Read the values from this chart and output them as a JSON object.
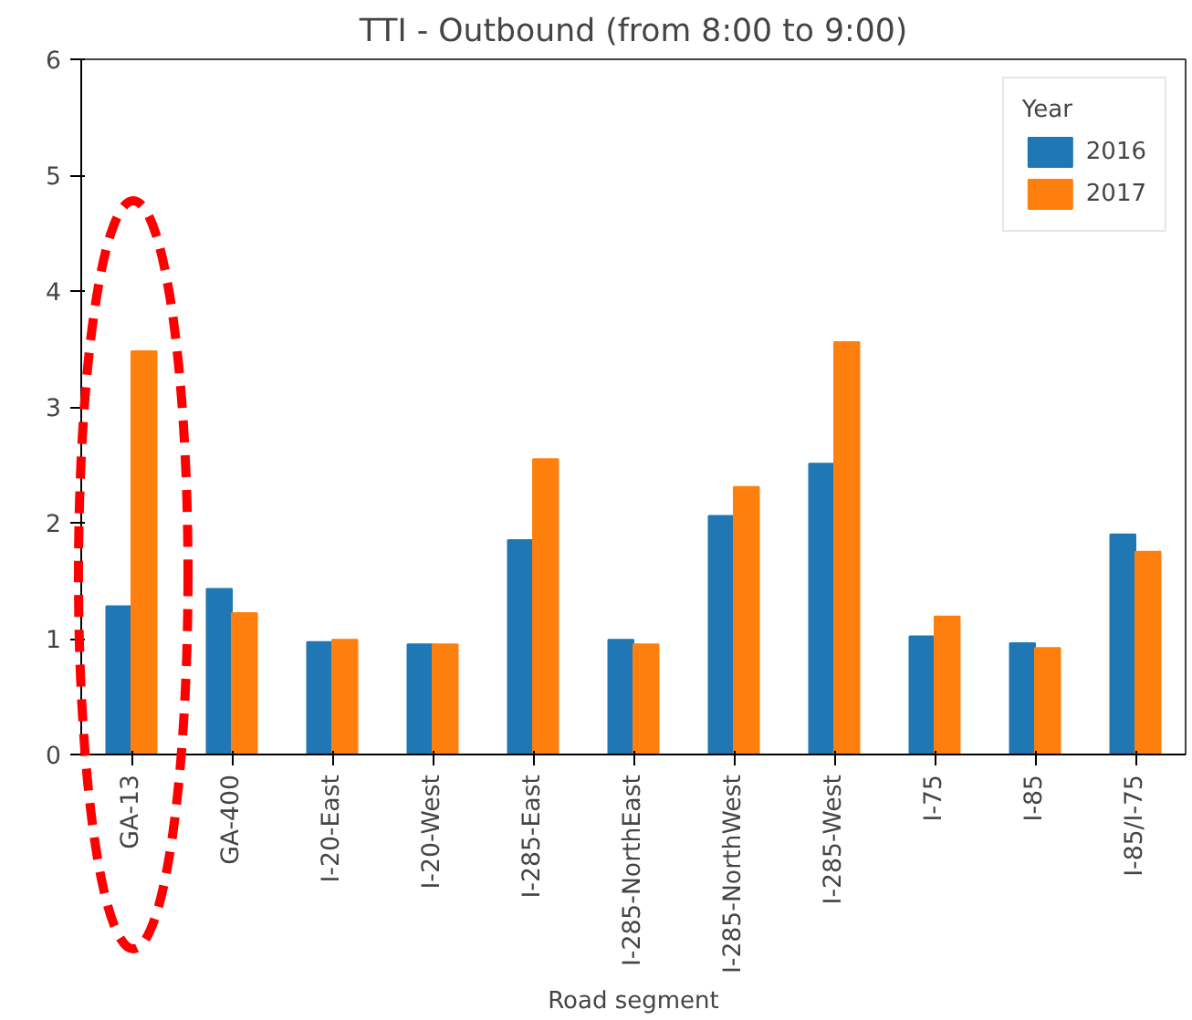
{
  "chart_data": {
    "type": "bar",
    "title": "TTI - Outbound (from 8:00 to 9:00)",
    "xlabel": "Road segment",
    "legend_title": "Year",
    "legend": "top right",
    "grid": false,
    "categories": [
      "GA-13",
      "GA-400",
      "I-20-East",
      "I-20-West",
      "I-285-East",
      "I-285-NorthEast",
      "I-285-NorthWest",
      "I-285-West",
      "I-75",
      "I-85",
      "I-85/I-75"
    ],
    "ylim": [
      0,
      6
    ],
    "yticks": [
      0,
      1,
      2,
      3,
      4,
      5,
      6
    ],
    "series": [
      {
        "name": "2016",
        "color": "#1f77b4",
        "values": [
          1.28,
          1.43,
          0.97,
          0.95,
          1.85,
          0.99,
          2.06,
          2.51,
          1.02,
          0.96,
          1.9
        ]
      },
      {
        "name": "2017",
        "color": "#ff7f0e",
        "values": [
          3.48,
          1.22,
          0.99,
          0.95,
          2.55,
          0.95,
          2.31,
          3.56,
          1.19,
          0.92,
          1.75
        ]
      }
    ]
  }
}
